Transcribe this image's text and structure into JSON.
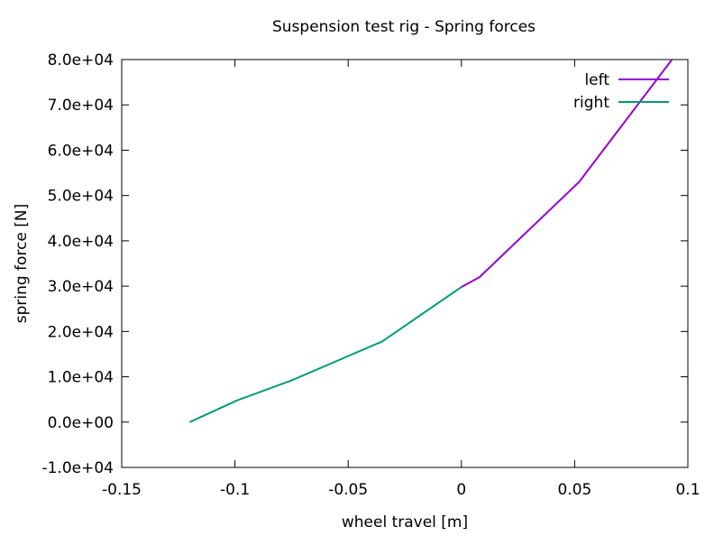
{
  "chart_data": {
    "type": "line",
    "title": "Suspension test rig - Spring forces",
    "xlabel": "wheel travel [m]",
    "ylabel": "spring force [N]",
    "xlim": [
      -0.15,
      0.1
    ],
    "ylim": [
      -10000,
      80000
    ],
    "xticks": [
      -0.15,
      -0.1,
      -0.05,
      0,
      0.05,
      0.1
    ],
    "xtick_labels": [
      "-0.15",
      "-0.1",
      "-0.05",
      "0",
      "0.05",
      "0.1"
    ],
    "yticks": [
      -10000,
      0,
      10000,
      20000,
      30000,
      40000,
      50000,
      60000,
      70000,
      80000
    ],
    "ytick_labels": [
      "-1.0e+04",
      "0.0e+00",
      "1.0e+04",
      "2.0e+04",
      "3.0e+04",
      "4.0e+04",
      "5.0e+04",
      "6.0e+04",
      "7.0e+04",
      "8.0e+04"
    ],
    "grid": false,
    "legend_position": "top-right",
    "series": [
      {
        "name": "left",
        "color": "#9400d3",
        "x": [
          0.0,
          0.008,
          0.052,
          0.093
        ],
        "y": [
          29800,
          32000,
          53000,
          80000
        ]
      },
      {
        "name": "right",
        "color": "#009e73",
        "x": [
          -0.12,
          -0.099,
          -0.075,
          -0.035,
          0.0
        ],
        "y": [
          0,
          4800,
          9200,
          17800,
          29800
        ]
      }
    ]
  }
}
